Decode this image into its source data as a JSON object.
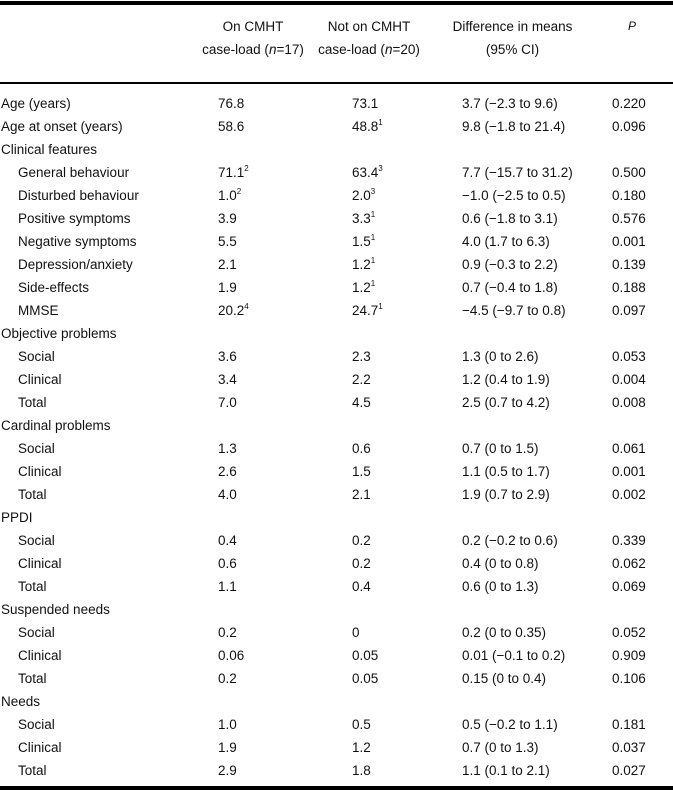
{
  "header": {
    "col_on_line1": "On CMHT",
    "col_on_line2_pre": "case-load (",
    "col_on_n": "n",
    "col_on_line2_post": "=17)",
    "col_not_line1": "Not on CMHT",
    "col_not_line2_pre": "case-load (",
    "col_not_n": "n",
    "col_not_line2_post": "=20)",
    "col_diff_line1": "Difference in means",
    "col_diff_line2": "(95% CI)",
    "col_p": "P"
  },
  "rows": [
    {
      "label": "Age (years)",
      "indent": false,
      "on": "76.8",
      "on_sup": "",
      "not": "73.1",
      "not_sup": "",
      "diff": "3.7 (−2.3 to 9.6)",
      "p": "0.220"
    },
    {
      "label": "Age at onset (years)",
      "indent": false,
      "on": "58.6",
      "on_sup": "",
      "not": "48.8",
      "not_sup": "1",
      "diff": "9.8 (−1.8 to 21.4)",
      "p": "0.096"
    },
    {
      "label": "Clinical features",
      "indent": false
    },
    {
      "label": "General behaviour",
      "indent": true,
      "on": "71.1",
      "on_sup": "2",
      "not": "63.4",
      "not_sup": "3",
      "diff": "7.7 (−15.7 to 31.2)",
      "p": "0.500"
    },
    {
      "label": "Disturbed behaviour",
      "indent": true,
      "on": "1.0",
      "on_sup": "2",
      "not": "2.0",
      "not_sup": "3",
      "diff": "−1.0 (−2.5 to 0.5)",
      "p": "0.180"
    },
    {
      "label": "Positive symptoms",
      "indent": true,
      "on": "3.9",
      "on_sup": "",
      "not": "3.3",
      "not_sup": "1",
      "diff": "0.6 (−1.8 to 3.1)",
      "p": "0.576"
    },
    {
      "label": "Negative symptoms",
      "indent": true,
      "on": "5.5",
      "on_sup": "",
      "not": "1.5",
      "not_sup": "1",
      "diff": "4.0 (1.7 to 6.3)",
      "p": "0.001"
    },
    {
      "label": "Depression/anxiety",
      "indent": true,
      "on": "2.1",
      "on_sup": "",
      "not": "1.2",
      "not_sup": "1",
      "diff": "0.9 (−0.3 to 2.2)",
      "p": "0.139"
    },
    {
      "label": "Side-effects",
      "indent": true,
      "on": "1.9",
      "on_sup": "",
      "not": "1.2",
      "not_sup": "1",
      "diff": "0.7 (−0.4 to 1.8)",
      "p": "0.188"
    },
    {
      "label": "MMSE",
      "indent": true,
      "on": "20.2",
      "on_sup": "4",
      "not": "24.7",
      "not_sup": "1",
      "diff": "−4.5 (−9.7 to 0.8)",
      "p": "0.097"
    },
    {
      "label": "Objective problems",
      "indent": false
    },
    {
      "label": "Social",
      "indent": true,
      "on": "3.6",
      "on_sup": "",
      "not": "2.3",
      "not_sup": "",
      "diff": "1.3 (0 to 2.6)",
      "p": "0.053"
    },
    {
      "label": "Clinical",
      "indent": true,
      "on": "3.4",
      "on_sup": "",
      "not": "2.2",
      "not_sup": "",
      "diff": "1.2 (0.4 to 1.9)",
      "p": "0.004"
    },
    {
      "label": "Total",
      "indent": true,
      "on": "7.0",
      "on_sup": "",
      "not": "4.5",
      "not_sup": "",
      "diff": "2.5 (0.7 to 4.2)",
      "p": "0.008"
    },
    {
      "label": "Cardinal problems",
      "indent": false
    },
    {
      "label": "Social",
      "indent": true,
      "on": "1.3",
      "on_sup": "",
      "not": "0.6",
      "not_sup": "",
      "diff": "0.7 (0 to 1.5)",
      "p": "0.061"
    },
    {
      "label": "Clinical",
      "indent": true,
      "on": "2.6",
      "on_sup": "",
      "not": "1.5",
      "not_sup": "",
      "diff": "1.1 (0.5 to 1.7)",
      "p": "0.001"
    },
    {
      "label": "Total",
      "indent": true,
      "on": "4.0",
      "on_sup": "",
      "not": "2.1",
      "not_sup": "",
      "diff": "1.9 (0.7 to 2.9)",
      "p": "0.002"
    },
    {
      "label": "PPDI",
      "indent": false
    },
    {
      "label": "Social",
      "indent": true,
      "on": "0.4",
      "on_sup": "",
      "not": "0.2",
      "not_sup": "",
      "diff": "0.2 (−0.2 to 0.6)",
      "p": "0.339"
    },
    {
      "label": "Clinical",
      "indent": true,
      "on": "0.6",
      "on_sup": "",
      "not": "0.2",
      "not_sup": "",
      "diff": "0.4 (0 to 0.8)",
      "p": "0.062"
    },
    {
      "label": "Total",
      "indent": true,
      "on": "1.1",
      "on_sup": "",
      "not": "0.4",
      "not_sup": "",
      "diff": "0.6 (0 to 1.3)",
      "p": "0.069"
    },
    {
      "label": "Suspended needs",
      "indent": false
    },
    {
      "label": "Social",
      "indent": true,
      "on": "0.2",
      "on_sup": "",
      "not": "0",
      "not_sup": "",
      "diff": "0.2 (0 to 0.35)",
      "p": "0.052"
    },
    {
      "label": "Clinical",
      "indent": true,
      "on": "0.06",
      "on_sup": "",
      "not": "0.05",
      "not_sup": "",
      "diff": "0.01 (−0.1 to 0.2)",
      "p": "0.909"
    },
    {
      "label": "Total",
      "indent": true,
      "on": "0.2",
      "on_sup": "",
      "not": "0.05",
      "not_sup": "",
      "diff": "0.15 (0 to 0.4)",
      "p": "0.106"
    },
    {
      "label": "Needs",
      "indent": false
    },
    {
      "label": "Social",
      "indent": true,
      "on": "1.0",
      "on_sup": "",
      "not": "0.5",
      "not_sup": "",
      "diff": "0.5 (−0.2 to 1.1)",
      "p": "0.181"
    },
    {
      "label": "Clinical",
      "indent": true,
      "on": "1.9",
      "on_sup": "",
      "not": "1.2",
      "not_sup": "",
      "diff": "0.7 (0 to 1.3)",
      "p": "0.037"
    },
    {
      "label": "Total",
      "indent": true,
      "on": "2.9",
      "on_sup": "",
      "not": "1.8",
      "not_sup": "",
      "diff": "1.1 (0.1 to 2.1)",
      "p": "0.027"
    }
  ]
}
